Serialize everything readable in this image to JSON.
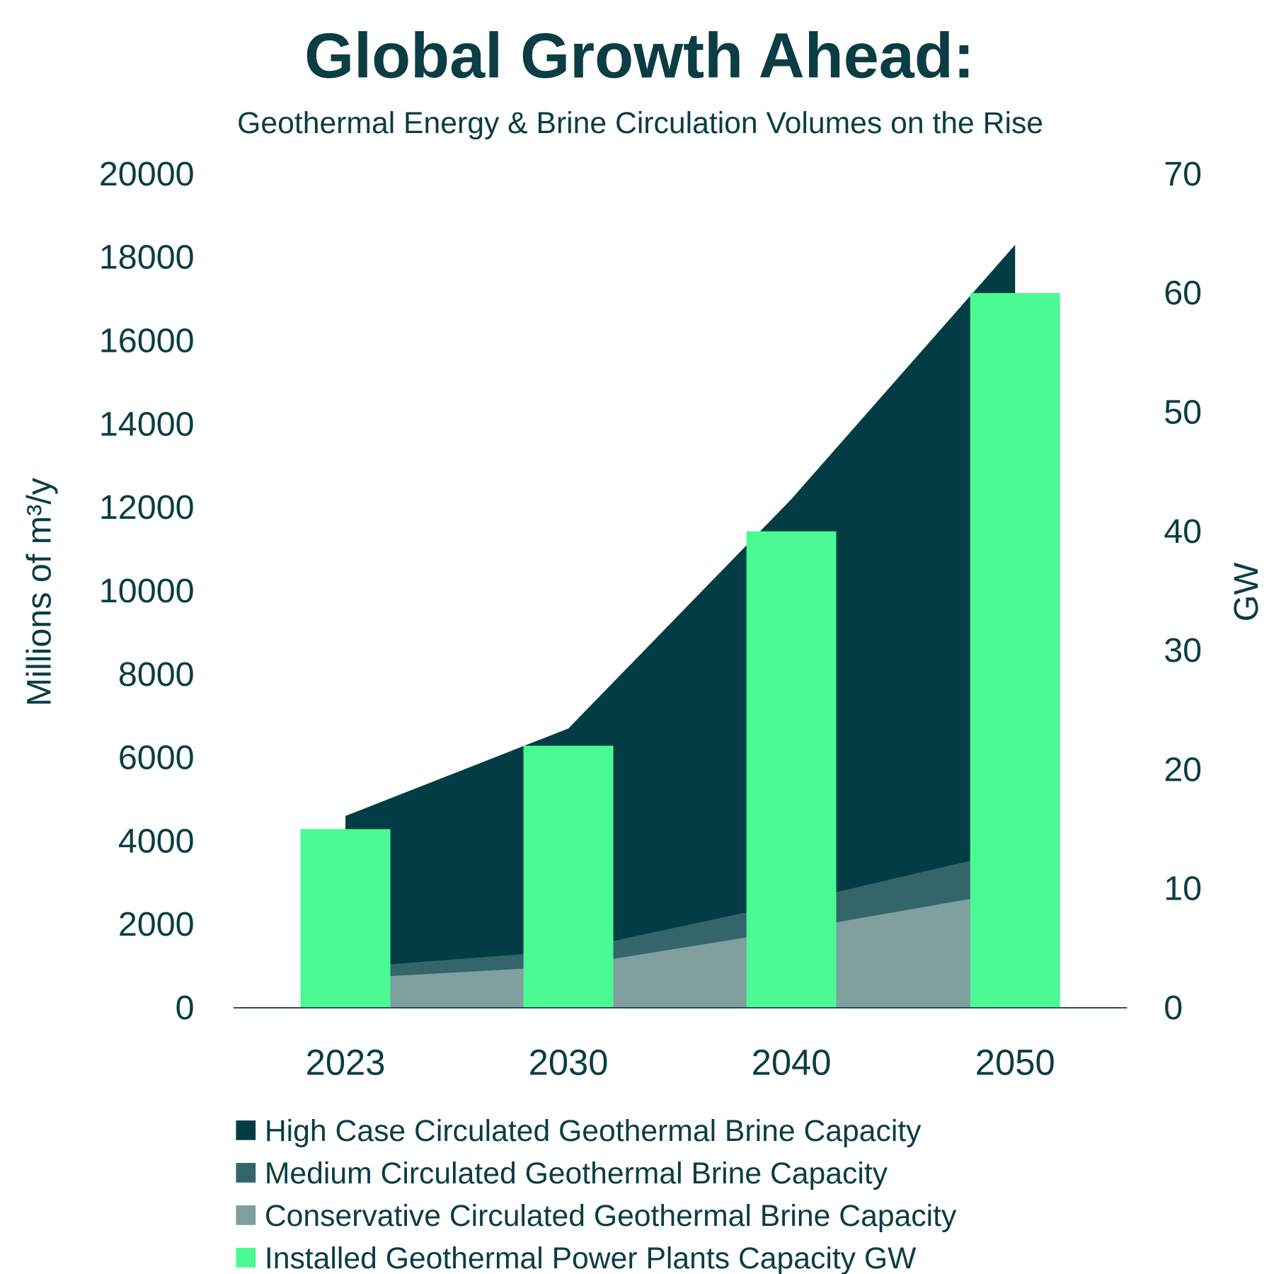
{
  "chart_data": {
    "type": "bar+area",
    "title": "Global Growth Ahead:",
    "subtitle": "Geothermal Energy & Brine Circulation Volumes on the Rise",
    "categories": [
      "2023",
      "2030",
      "2040",
      "2050"
    ],
    "ylabel_left": "Millions of m³/y",
    "ylabel_right": "GW",
    "ylim_left": [
      0,
      20000
    ],
    "ylim_right": [
      0,
      70
    ],
    "yticks_left": [
      "0",
      "2000",
      "4000",
      "6000",
      "8000",
      "10000",
      "12000",
      "14000",
      "16000",
      "18000",
      "20000"
    ],
    "yticks_right": [
      "0",
      "10",
      "20",
      "30",
      "40",
      "50",
      "60",
      "70"
    ],
    "grid": false,
    "legend_placement": "bottom",
    "areas": [
      {
        "name": "High Case Circulated Geothermal Brine Capacity",
        "values": [
          4600,
          6700,
          12200,
          18300
        ],
        "color": "#023d45"
      },
      {
        "name": "Medium Circulated Geothermal Brine Capacity",
        "values": [
          960,
          1370,
          2520,
          3780
        ],
        "color": "#33656a"
      },
      {
        "name": "Conservative Circulated Geothermal Brine Capacity",
        "values": [
          700,
          1000,
          1860,
          2800
        ],
        "color": "#809f9f"
      }
    ],
    "bars": {
      "name": "Installed Geothermal Power Plants Capacity GW",
      "values": [
        15,
        22,
        40,
        60
      ],
      "color": "#4afa92",
      "axis": "right"
    }
  }
}
